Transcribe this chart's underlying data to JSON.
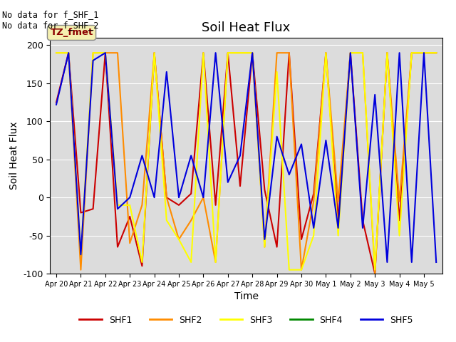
{
  "title": "Soil Heat Flux",
  "xlabel": "Time",
  "ylabel": "Soil Heat Flux",
  "ylim": [
    -100,
    210
  ],
  "yticks": [
    -100,
    -50,
    0,
    50,
    100,
    150,
    200
  ],
  "annotation_text": "No data for f_SHF_1\nNo data for f_SHF_2",
  "box_label": "TZ_fmet",
  "background_color": "#dcdcdc",
  "legend_entries": [
    "SHF1",
    "SHF2",
    "SHF3",
    "SHF4",
    "SHF5"
  ],
  "colors": {
    "SHF1": "#cc0000",
    "SHF2": "#ff8c00",
    "SHF3": "#ffff00",
    "SHF4": "#008800",
    "SHF5": "#0000dd"
  },
  "x_labels": [
    "Apr 20",
    "Apr 21",
    "Apr 22",
    "Apr 23",
    "Apr 24",
    "Apr 25",
    "Apr 26",
    "Apr 27",
    "Apr 28",
    "Apr 29",
    "Apr 30",
    "May 1",
    "May 2",
    "May 3",
    "May 4",
    "May 5"
  ],
  "num_points": 32,
  "tick_positions": [
    0,
    2,
    4,
    6,
    8,
    10,
    12,
    14,
    16,
    18,
    20,
    22,
    24,
    26,
    28,
    30
  ],
  "SHF1": [
    125,
    190,
    -20,
    -15,
    190,
    -65,
    -25,
    -90,
    190,
    0,
    -10,
    5,
    190,
    -10,
    190,
    15,
    190,
    10,
    -65,
    190,
    -55,
    5,
    190,
    -30,
    190,
    -30,
    -100,
    190,
    -30,
    190,
    190,
    190
  ],
  "SHF2": [
    190,
    190,
    -95,
    190,
    190,
    190,
    -60,
    -10,
    190,
    0,
    -55,
    -30,
    0,
    -85,
    190,
    190,
    190,
    -65,
    190,
    190,
    -95,
    -5,
    190,
    -5,
    190,
    190,
    -100,
    190,
    -5,
    190,
    190,
    190
  ],
  "SHF3": [
    190,
    190,
    -75,
    190,
    190,
    -10,
    -10,
    -85,
    190,
    -30,
    -55,
    -85,
    190,
    -85,
    190,
    190,
    190,
    -65,
    165,
    -95,
    -95,
    -50,
    190,
    -50,
    190,
    190,
    -95,
    190,
    -50,
    190,
    190,
    190
  ],
  "SHF4": [
    null,
    null,
    null,
    null,
    null,
    null,
    null,
    null,
    null,
    null,
    null,
    null,
    null,
    null,
    null,
    null,
    null,
    null,
    null,
    null,
    null,
    null,
    null,
    null,
    null,
    null,
    null,
    null,
    null,
    null,
    null,
    null
  ],
  "SHF5": [
    122,
    190,
    -75,
    180,
    190,
    -15,
    0,
    55,
    0,
    165,
    0,
    55,
    0,
    190,
    20,
    55,
    190,
    -55,
    80,
    30,
    70,
    -40,
    75,
    -40,
    190,
    -40,
    135,
    -85,
    190,
    -85,
    190,
    -85
  ]
}
